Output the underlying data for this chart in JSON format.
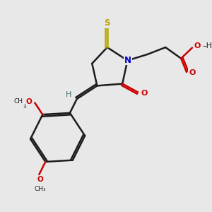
{
  "bg_color": "#e8e8e8",
  "bond_color": "#1c1c1c",
  "S_color": "#b8a800",
  "N_color": "#0000cc",
  "O_color": "#cc0000",
  "H_color": "#3a7070",
  "lw": 1.8,
  "lw_ring": 1.8,
  "figsize": [
    3.0,
    3.0
  ],
  "dpi": 100,
  "xlim": [
    0,
    10
  ],
  "ylim": [
    0,
    10
  ]
}
